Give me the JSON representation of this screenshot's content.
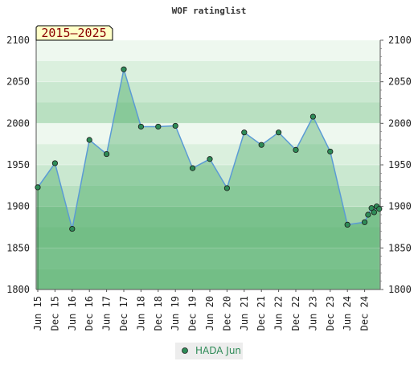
{
  "chart_data": {
    "type": "area",
    "title": "WOF ratinglist",
    "badge": "2015–2025",
    "ylim": [
      1800,
      2100
    ],
    "yticks": [
      1800,
      1850,
      1900,
      1950,
      2000,
      2050,
      2100
    ],
    "x_tick_labels": [
      "Jun 15",
      "Dec 15",
      "Jun 16",
      "Dec 16",
      "Jun 17",
      "Dec 17",
      "Jun 18",
      "Dec 18",
      "Jun 19",
      "Dec 19",
      "Jun 20",
      "Dec 20",
      "Jun 21",
      "Dec 21",
      "Jun 22",
      "Dec 22",
      "Jun 23",
      "Dec 23",
      "Jun 24",
      "Dec 24"
    ],
    "series": [
      {
        "name": "HADA Jun",
        "color": "#5b9bd5",
        "point_color": "#2e8b57",
        "points": [
          {
            "x": 0,
            "y": 1923
          },
          {
            "x": 1,
            "y": 1952
          },
          {
            "x": 2,
            "y": 1873
          },
          {
            "x": 3,
            "y": 1980
          },
          {
            "x": 4,
            "y": 1963
          },
          {
            "x": 5,
            "y": 2065
          },
          {
            "x": 6,
            "y": 1996
          },
          {
            "x": 7,
            "y": 1996
          },
          {
            "x": 8,
            "y": 1997
          },
          {
            "x": 9,
            "y": 1946
          },
          {
            "x": 10,
            "y": 1957
          },
          {
            "x": 11,
            "y": 1922
          },
          {
            "x": 12,
            "y": 1989
          },
          {
            "x": 13,
            "y": 1974
          },
          {
            "x": 14,
            "y": 1989
          },
          {
            "x": 15,
            "y": 1968
          },
          {
            "x": 16,
            "y": 2008
          },
          {
            "x": 17,
            "y": 1966
          },
          {
            "x": 18,
            "y": 1878
          },
          {
            "x": 19,
            "y": 1881
          },
          {
            "x": 19.2,
            "y": 1890
          },
          {
            "x": 19.4,
            "y": 1898
          },
          {
            "x": 19.55,
            "y": 1893
          },
          {
            "x": 19.7,
            "y": 1900
          },
          {
            "x": 19.85,
            "y": 1897
          }
        ]
      }
    ],
    "grid": true,
    "legend": "bottom-center"
  }
}
